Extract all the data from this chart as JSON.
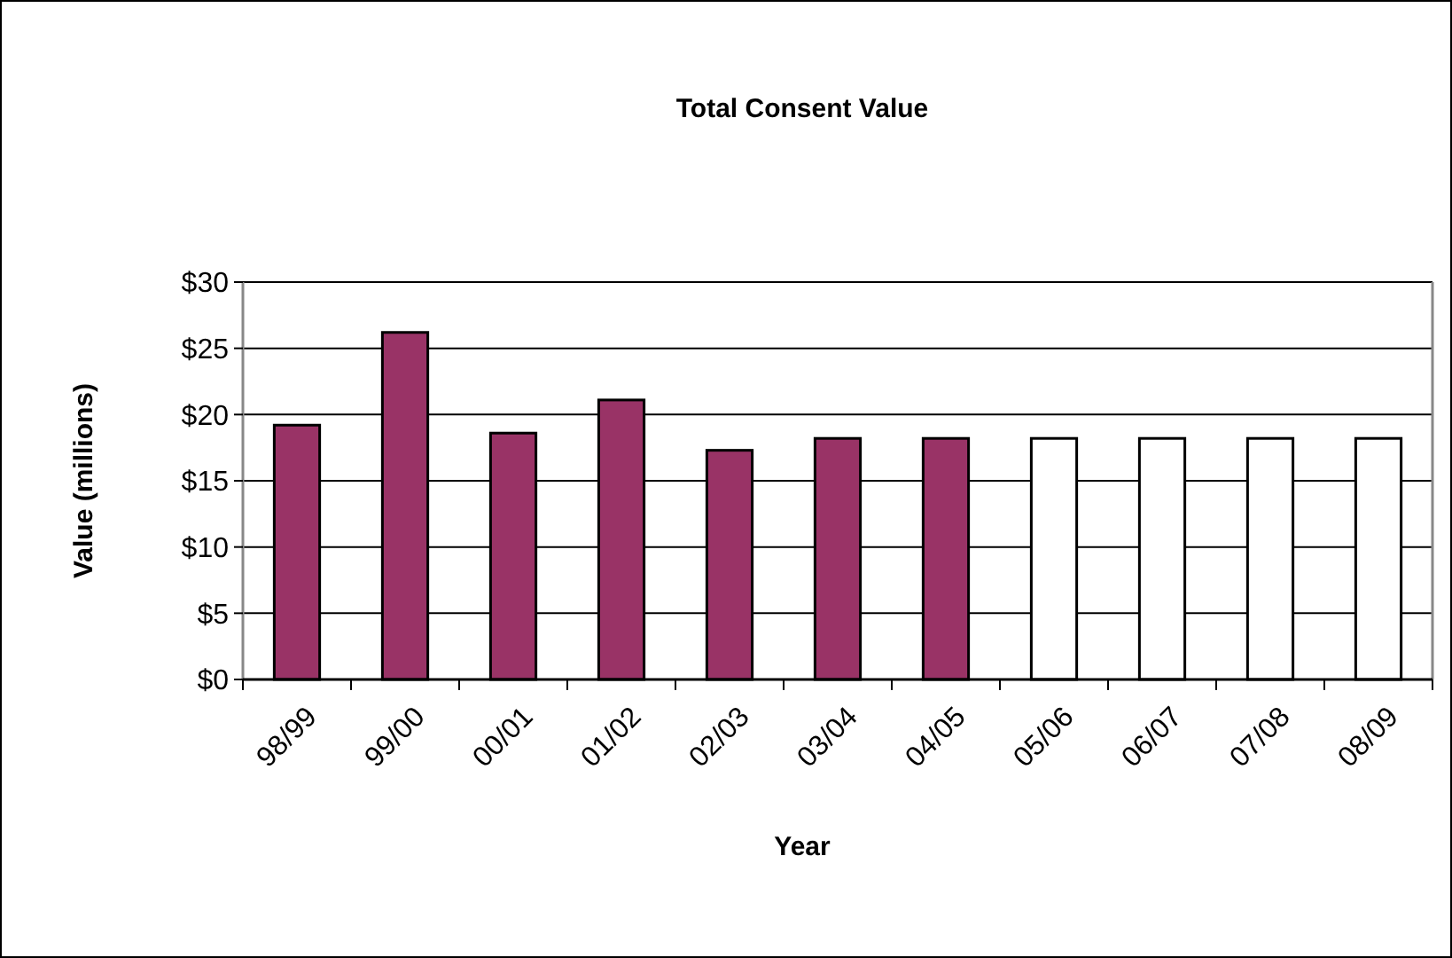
{
  "chart_data": {
    "type": "bar",
    "title": "Total Consent Value",
    "xlabel": "Year",
    "ylabel": "Value (millions)",
    "categories": [
      "98/99",
      "99/00",
      "00/01",
      "01/02",
      "02/03",
      "03/04",
      "04/05",
      "05/06",
      "06/07",
      "07/08",
      "08/09"
    ],
    "values": [
      19.2,
      26.2,
      18.6,
      21.1,
      17.3,
      18.2,
      18.2,
      18.2,
      18.2,
      18.2,
      18.2
    ],
    "colors": [
      "#993366",
      "#993366",
      "#993366",
      "#993366",
      "#993366",
      "#993366",
      "#993366",
      "#ffffff",
      "#ffffff",
      "#ffffff",
      "#ffffff"
    ],
    "ylim": [
      0,
      30
    ],
    "yticks": [
      {
        "value": 0,
        "label": "$0"
      },
      {
        "value": 5,
        "label": "$5"
      },
      {
        "value": 10,
        "label": "$10"
      },
      {
        "value": 15,
        "label": "$15"
      },
      {
        "value": 20,
        "label": "$20"
      },
      {
        "value": 25,
        "label": "$25"
      },
      {
        "value": 30,
        "label": "$30"
      }
    ],
    "grid": "y"
  }
}
